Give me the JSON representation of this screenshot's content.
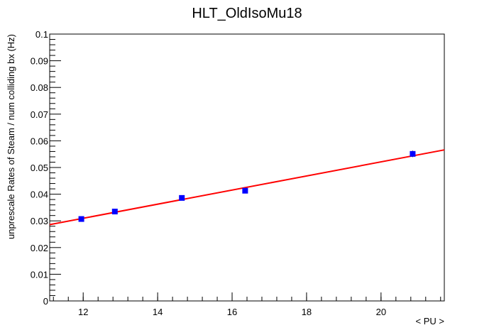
{
  "chart_data": {
    "type": "scatter",
    "title": "HLT_OldIsoMu18",
    "xlabel": "< PU >",
    "ylabel": "unprescale Rates of Steam / num colliding bx (Hz)",
    "xlim": [
      11.1,
      21.7
    ],
    "ylim": [
      0,
      0.1
    ],
    "x_ticks": [
      "12",
      "14",
      "16",
      "18",
      "20"
    ],
    "y_ticks": [
      "0",
      "0.01",
      "0.02",
      "0.03",
      "0.04",
      "0.05",
      "0.06",
      "0.07",
      "0.08",
      "0.09",
      "0.1"
    ],
    "grid": false,
    "series": [
      {
        "marker": "square",
        "color": "#0000ff",
        "x": [
          11.95,
          12.85,
          14.65,
          16.35,
          20.85
        ],
        "y": [
          0.0307,
          0.0335,
          0.0386,
          0.0413,
          0.0551
        ],
        "yerr": [
          0.0008,
          0.0008,
          0.0008,
          0.0008,
          0.0012
        ]
      }
    ],
    "fit": {
      "type": "linear",
      "color": "#ff0000",
      "x": [
        11.1,
        21.7
      ],
      "y": [
        0.0286,
        0.0566
      ]
    }
  }
}
